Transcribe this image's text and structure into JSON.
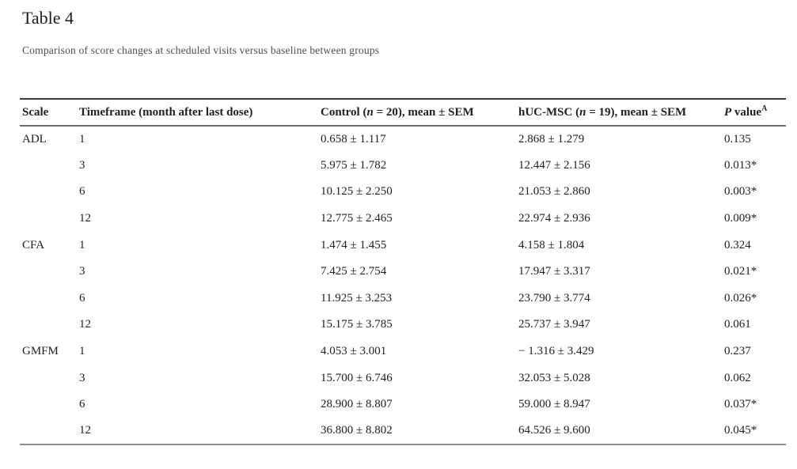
{
  "page": {
    "title": "Table 4",
    "caption": "Comparison of score changes at scheduled visits versus baseline between groups"
  },
  "table": {
    "columns": [
      {
        "label": "Scale"
      },
      {
        "label": "Timeframe (month after last dose)"
      },
      {
        "pre": "Control (",
        "italic": "n",
        "post": " = 20), mean ± SEM"
      },
      {
        "pre": "hUC-MSC (",
        "italic": "n",
        "post": " = 19), mean ± SEM"
      },
      {
        "italic": "P",
        "post": " value",
        "sup": "A"
      }
    ],
    "rows": [
      {
        "scale": "ADL",
        "timeframe": "1",
        "control": "0.658 ± 1.117",
        "hucmsc": "2.868 ± 1.279",
        "pvalue": "0.135"
      },
      {
        "scale": "",
        "timeframe": "3",
        "control": "5.975 ± 1.782",
        "hucmsc": "12.447 ± 2.156",
        "pvalue": "0.013*"
      },
      {
        "scale": "",
        "timeframe": "6",
        "control": "10.125 ± 2.250",
        "hucmsc": "21.053 ± 2.860",
        "pvalue": "0.003*"
      },
      {
        "scale": "",
        "timeframe": "12",
        "control": "12.775 ± 2.465",
        "hucmsc": "22.974 ± 2.936",
        "pvalue": "0.009*"
      },
      {
        "scale": "CFA",
        "timeframe": "1",
        "control": "1.474 ± 1.455",
        "hucmsc": "4.158 ± 1.804",
        "pvalue": "0.324"
      },
      {
        "scale": "",
        "timeframe": "3",
        "control": "7.425 ± 2.754",
        "hucmsc": "17.947 ± 3.317",
        "pvalue": "0.021*"
      },
      {
        "scale": "",
        "timeframe": "6",
        "control": "11.925 ± 3.253",
        "hucmsc": "23.790 ± 3.774",
        "pvalue": "0.026*"
      },
      {
        "scale": "",
        "timeframe": "12",
        "control": "15.175 ± 3.785",
        "hucmsc": "25.737 ± 3.947",
        "pvalue": "0.061"
      },
      {
        "scale": "GMFM",
        "timeframe": "1",
        "control": "4.053 ± 3.001",
        "hucmsc": "− 1.316 ± 3.429",
        "pvalue": "0.237"
      },
      {
        "scale": "",
        "timeframe": "3",
        "control": "15.700 ± 6.746",
        "hucmsc": "32.053 ± 5.028",
        "pvalue": "0.062"
      },
      {
        "scale": "",
        "timeframe": "6",
        "control": "28.900 ± 8.807",
        "hucmsc": "59.000 ± 8.947",
        "pvalue": "0.037*"
      },
      {
        "scale": "",
        "timeframe": "12",
        "control": "36.800 ± 8.802",
        "hucmsc": "64.526 ± 9.600",
        "pvalue": "0.045*"
      }
    ]
  }
}
